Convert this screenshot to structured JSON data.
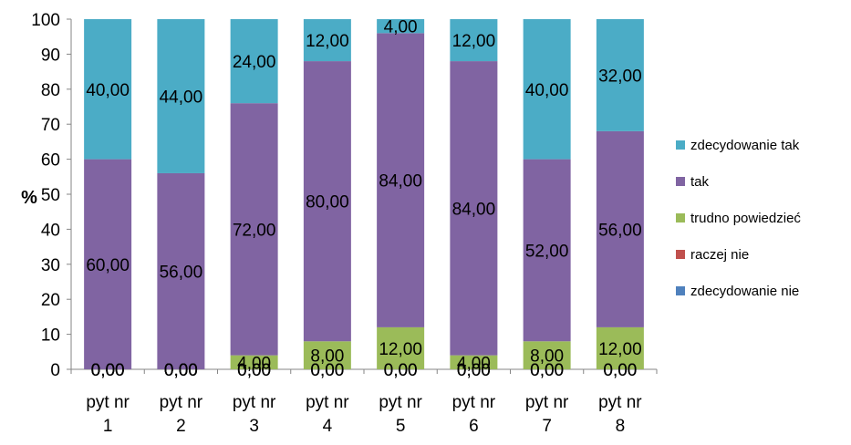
{
  "chart_data": {
    "type": "bar",
    "stacked": true,
    "ylabel": "%",
    "ylim": [
      0,
      100
    ],
    "ytick_step": 10,
    "ticks": [
      "0",
      "10",
      "20",
      "30",
      "40",
      "50",
      "60",
      "70",
      "80",
      "90",
      "100"
    ],
    "grid": false,
    "legend_position": "right",
    "categories": [
      [
        "pyt nr",
        "1"
      ],
      [
        "pyt nr",
        "2"
      ],
      [
        "pyt nr",
        "3"
      ],
      [
        "pyt nr",
        "4"
      ],
      [
        "pyt nr",
        "5"
      ],
      [
        "pyt nr",
        "6"
      ],
      [
        "pyt nr",
        "7"
      ],
      [
        "pyt nr",
        "8"
      ]
    ],
    "series": [
      {
        "name": "zdecydowanie nie",
        "color": "#4F81BD",
        "values": [
          0,
          0,
          0,
          0,
          0,
          0,
          0,
          0
        ],
        "labels": [
          "0,00",
          "0,00",
          "0,00",
          "0,00",
          "0,00",
          "0,00",
          "0,00",
          "0,00"
        ]
      },
      {
        "name": "raczej nie",
        "color": "#C0504D",
        "values": [
          0,
          0,
          0,
          0,
          0,
          0,
          0,
          0
        ],
        "labels": [
          "0,00",
          "0,00",
          "0,00",
          "0,00",
          "0,00",
          "0,00",
          "0,00",
          "0,00"
        ]
      },
      {
        "name": "trudno powiedzieć",
        "color": "#9BBB59",
        "values": [
          0,
          0,
          4,
          8,
          12,
          4,
          8,
          12
        ],
        "labels": [
          "0,00",
          "0,00",
          "4,00",
          "8,00",
          "12,00",
          "4,00",
          "8,00",
          "12,00"
        ]
      },
      {
        "name": "tak",
        "color": "#8064A2",
        "values": [
          60,
          56,
          72,
          80,
          84,
          84,
          52,
          56
        ],
        "labels": [
          "60,00",
          "56,00",
          "72,00",
          "80,00",
          "84,00",
          "84,00",
          "52,00",
          "56,00"
        ]
      },
      {
        "name": "zdecydowanie tak",
        "color": "#4BACC6",
        "values": [
          40,
          44,
          24,
          12,
          4,
          12,
          40,
          32
        ],
        "labels": [
          "40,00",
          "44,00",
          "24,00",
          "12,00",
          "4,00",
          "12,00",
          "40,00",
          "32,00"
        ]
      }
    ],
    "legend_order": [
      "zdecydowanie tak",
      "tak",
      "trudno powiedzieć",
      "raczej nie",
      "zdecydowanie nie"
    ]
  }
}
